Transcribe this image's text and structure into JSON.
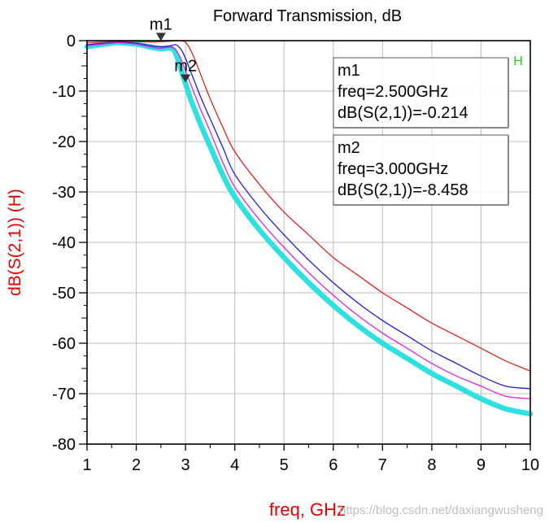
{
  "chart_data": {
    "type": "line",
    "title": "Forward Transmission, dB",
    "xlabel": "freq, GHz",
    "ylabel": "dB(S(2,1))  (H)",
    "xlim": [
      1,
      10
    ],
    "ylim": [
      -80,
      0
    ],
    "grid": true,
    "x_ticks": [
      1,
      2,
      3,
      4,
      5,
      6,
      7,
      8,
      9,
      10
    ],
    "y_ticks": [
      0,
      -10,
      -20,
      -30,
      -40,
      -50,
      -60,
      -70,
      -80
    ],
    "corner_label": "H",
    "x": [
      1.0,
      1.5,
      1.65,
      2.0,
      2.3,
      2.5,
      2.7,
      2.8,
      2.9,
      3.0,
      3.1,
      3.2,
      3.3,
      3.5,
      3.75,
      4.0,
      4.5,
      5.0,
      5.5,
      6.0,
      6.5,
      7.0,
      7.5,
      8.0,
      8.5,
      9.0,
      9.5,
      10.0
    ],
    "series": [
      {
        "name": "red",
        "color": "#e02020",
        "width": 1.3,
        "values": [
          -0.4,
          -0.2,
          -0.15,
          -0.2,
          -0.25,
          -0.2,
          -0.1,
          0.0,
          0.0,
          -0.3,
          -1.8,
          -4.0,
          -6.5,
          -11.5,
          -17.0,
          -22.0,
          -28.5,
          -34.0,
          -38.5,
          -43.0,
          -46.5,
          -50.0,
          -53.0,
          -56.0,
          -58.5,
          -61.0,
          -63.5,
          -65.5
        ]
      },
      {
        "name": "blue",
        "color": "#1c1cd8",
        "width": 1.3,
        "values": [
          -0.8,
          -0.4,
          -0.3,
          -0.5,
          -1.0,
          -1.2,
          -1.0,
          -0.8,
          -1.6,
          -3.5,
          -6.0,
          -8.5,
          -11.0,
          -15.5,
          -21.0,
          -26.5,
          -33.0,
          -38.5,
          -43.5,
          -48.0,
          -52.0,
          -55.5,
          -58.5,
          -61.5,
          -64.0,
          -66.5,
          -68.5,
          -69.0
        ]
      },
      {
        "name": "magenta",
        "color": "#e020e0",
        "width": 1.3,
        "values": [
          -1.0,
          -0.5,
          -0.4,
          -0.7,
          -1.3,
          -1.5,
          -1.3,
          -1.8,
          -3.5,
          -6.0,
          -8.5,
          -11.0,
          -13.5,
          -18.0,
          -24.0,
          -29.0,
          -35.5,
          -41.0,
          -46.0,
          -50.5,
          -54.5,
          -58.0,
          -61.0,
          -64.0,
          -66.5,
          -68.5,
          -70.5,
          -71.0
        ]
      },
      {
        "name": "cyan",
        "color": "#2ee0e0",
        "width": 6.5,
        "values": [
          -1.2,
          -0.5,
          -0.4,
          -0.7,
          -1.3,
          -1.6,
          -1.5,
          -2.5,
          -5.5,
          -8.5,
          -11.5,
          -14.0,
          -16.5,
          -21.0,
          -26.5,
          -31.0,
          -37.5,
          -43.0,
          -48.0,
          -52.5,
          -56.5,
          -60.0,
          -63.0,
          -66.0,
          -68.5,
          -71.0,
          -73.0,
          -74.0
        ]
      }
    ],
    "markers": [
      {
        "name": "m1",
        "x": 2.5,
        "y": -0.214,
        "label": "m1",
        "freq_text": "freq=2.500GHz",
        "value_text": "dB(S(2,1))=-0.214"
      },
      {
        "name": "m2",
        "x": 3.0,
        "y": -8.458,
        "label": "m2",
        "freq_text": "freq=3.000GHz",
        "value_text": "dB(S(2,1))=-8.458"
      }
    ],
    "colors": {
      "axis_text": "#000000",
      "ylabel": "#e00000",
      "xlabel": "#e00000",
      "grid": "#bdbdbd",
      "corner_label": "#22cc22"
    }
  },
  "watermark": "https://blog.csdn.net/daxiangwusheng"
}
